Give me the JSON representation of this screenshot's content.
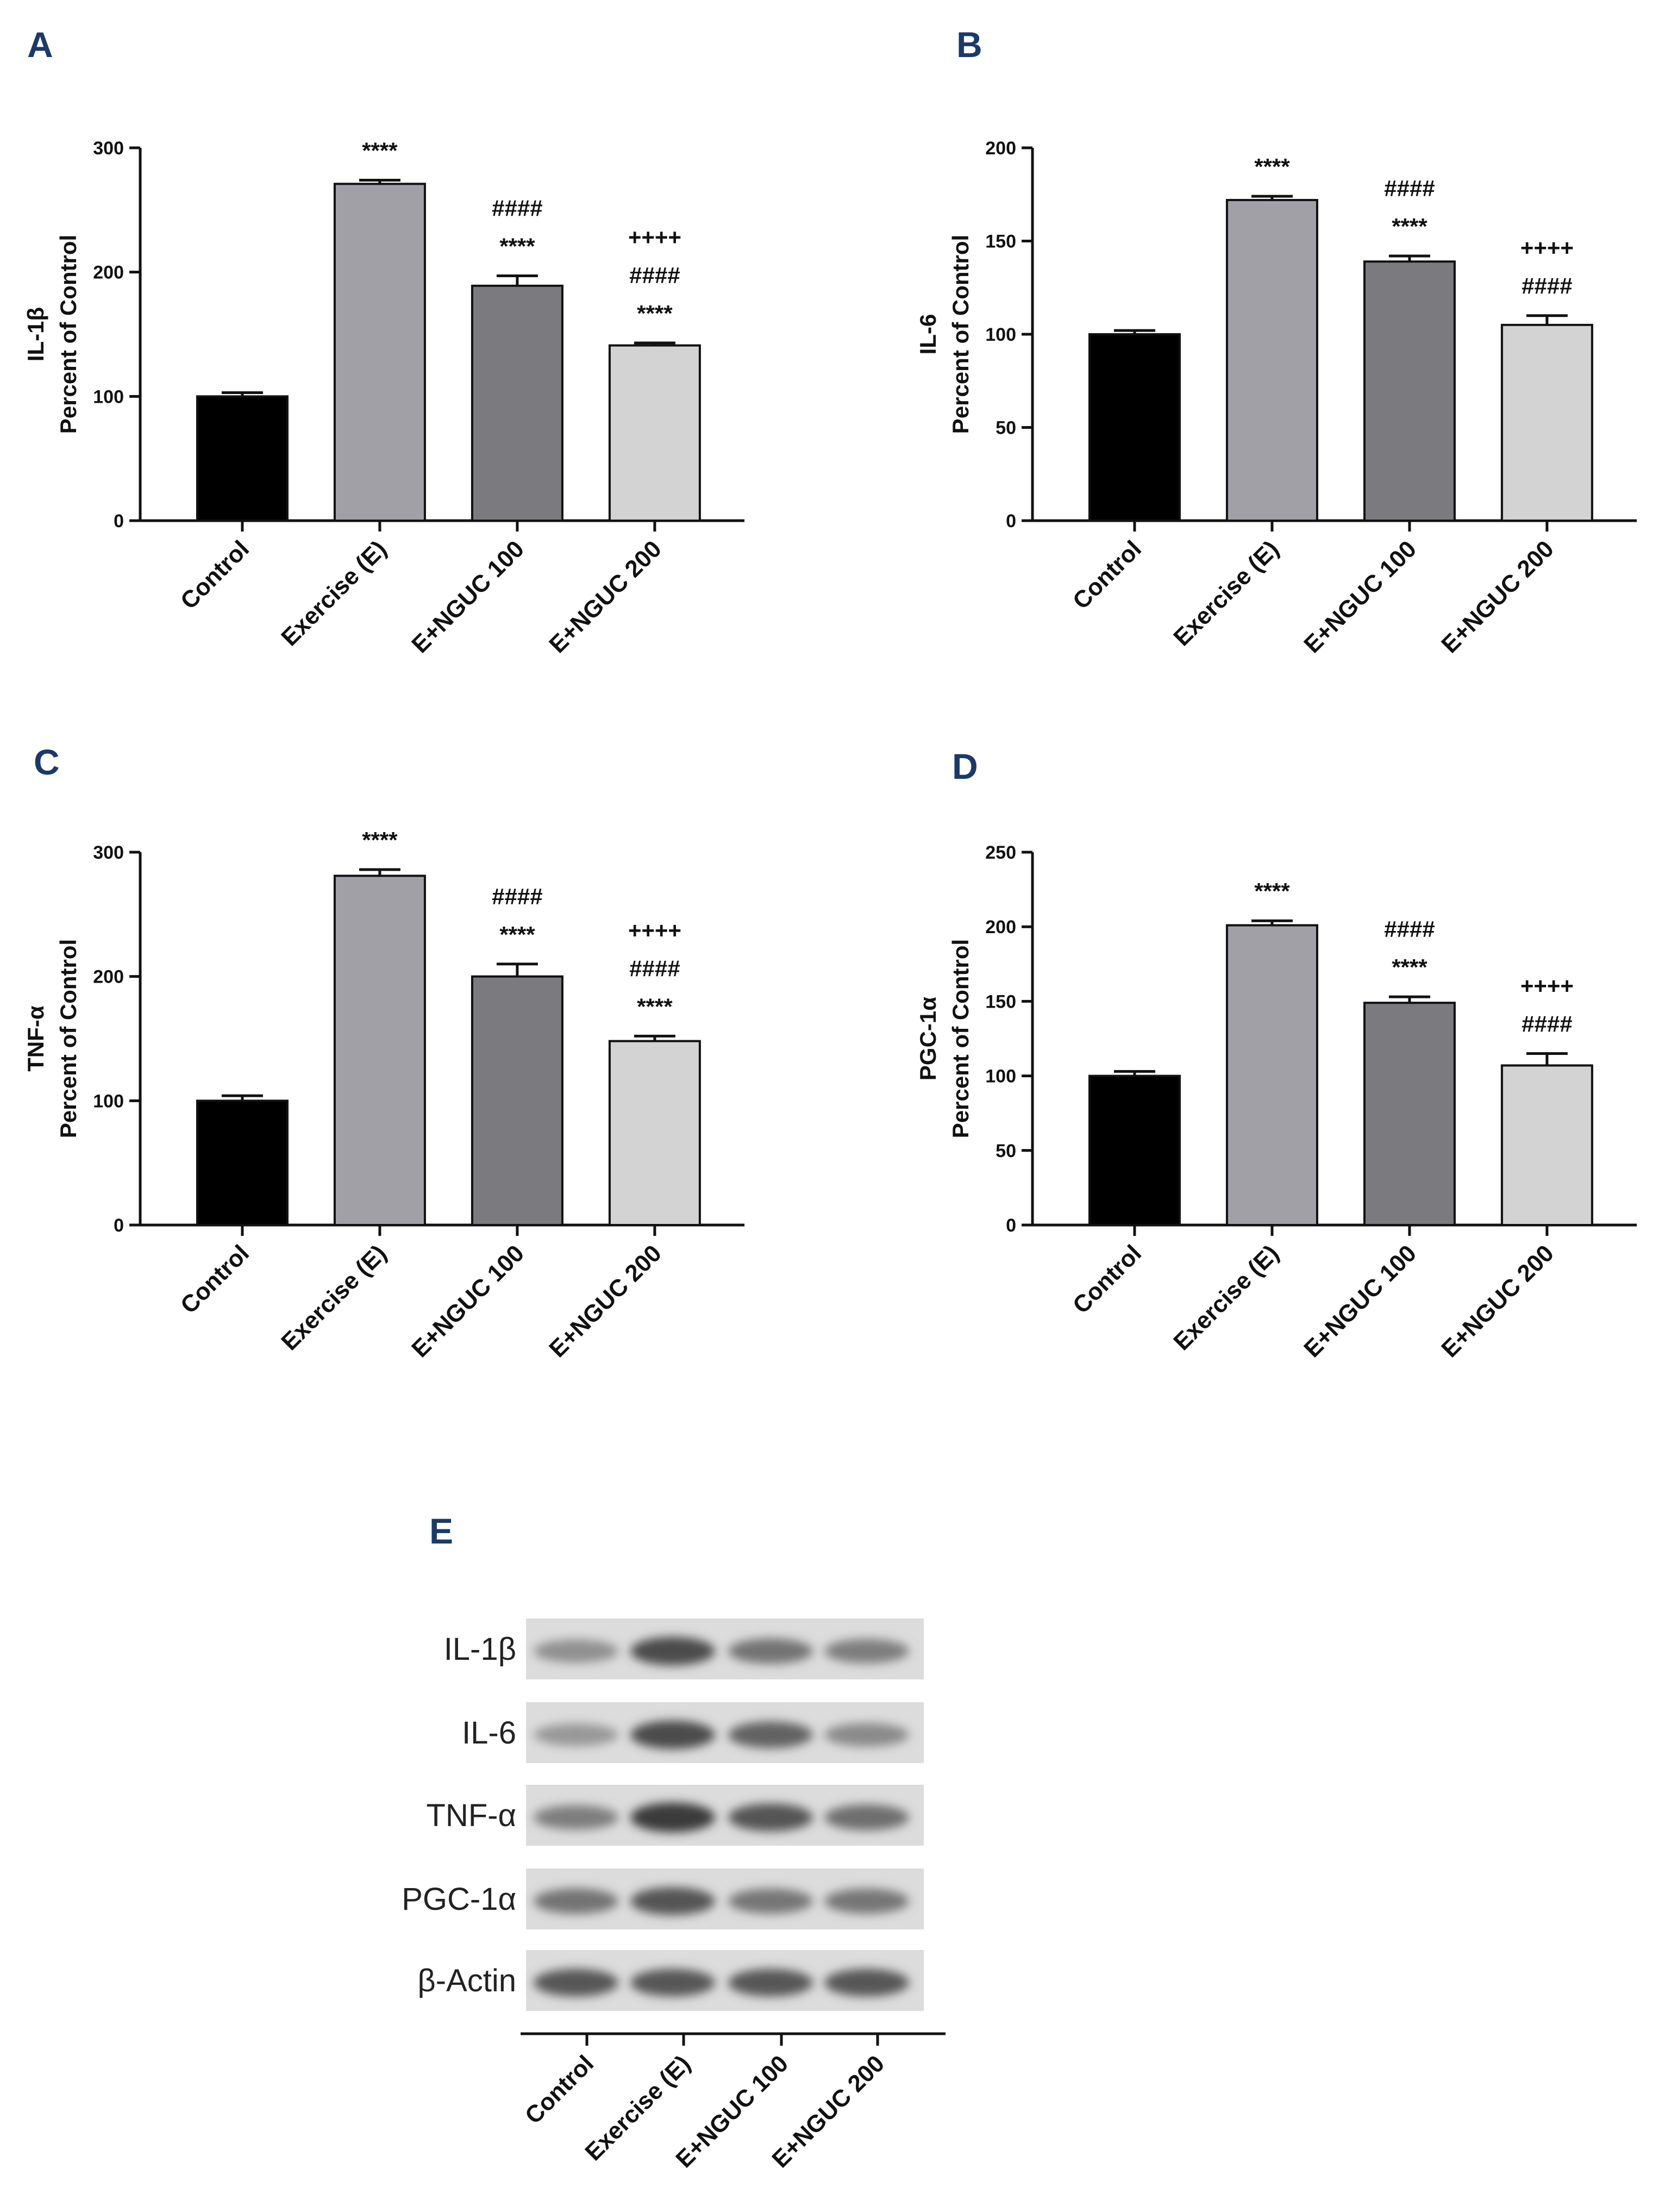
{
  "chart_data": [
    {
      "panel": "A",
      "type": "bar",
      "ylabel_line1": "IL-1β",
      "ylabel_line2": "Percent of Control",
      "categories": [
        "Control",
        "Exercise (E)",
        "E+NGUC 100",
        "E+NGUC 200"
      ],
      "values": [
        100,
        271,
        189,
        141
      ],
      "errors": [
        3,
        3,
        8,
        2
      ],
      "ylim": [
        0,
        300
      ],
      "yticks": [
        0,
        100,
        200,
        300
      ],
      "bar_colors": [
        "#000000",
        "#a0a0a6",
        "#7b7b7f",
        "#d3d3d3"
      ],
      "annotations": [
        [],
        [
          "****"
        ],
        [
          "####",
          "****"
        ],
        [
          "++++",
          "####",
          "****"
        ]
      ]
    },
    {
      "panel": "B",
      "type": "bar",
      "ylabel_line1": "IL-6",
      "ylabel_line2": "Percent of Control",
      "categories": [
        "Control",
        "Exercise (E)",
        "E+NGUC 100",
        "E+NGUC 200"
      ],
      "values": [
        100,
        172,
        139,
        105
      ],
      "errors": [
        2,
        2,
        3,
        5
      ],
      "ylim": [
        0,
        200
      ],
      "yticks": [
        0,
        50,
        100,
        150,
        200
      ],
      "bar_colors": [
        "#000000",
        "#a0a0a6",
        "#7b7b7f",
        "#d3d3d3"
      ],
      "annotations": [
        [],
        [
          "****"
        ],
        [
          "####",
          "****"
        ],
        [
          "++++",
          "####"
        ]
      ]
    },
    {
      "panel": "C",
      "type": "bar",
      "ylabel_line1": "TNF-α",
      "ylabel_line2": "Percent of Control",
      "categories": [
        "Control",
        "Exercise (E)",
        "E+NGUC 100",
        "E+NGUC 200"
      ],
      "values": [
        100,
        281,
        200,
        148
      ],
      "errors": [
        4,
        5,
        10,
        4
      ],
      "ylim": [
        0,
        300
      ],
      "yticks": [
        0,
        100,
        200,
        300
      ],
      "bar_colors": [
        "#000000",
        "#a0a0a6",
        "#7b7b7f",
        "#d3d3d3"
      ],
      "annotations": [
        [],
        [
          "****"
        ],
        [
          "####",
          "****"
        ],
        [
          "++++",
          "####",
          "****"
        ]
      ]
    },
    {
      "panel": "D",
      "type": "bar",
      "ylabel_line1": "PGC-1α",
      "ylabel_line2": "Percent of Control",
      "categories": [
        "Control",
        "Exercise (E)",
        "E+NGUC 100",
        "E+NGUC 200"
      ],
      "values": [
        100,
        201,
        149,
        107
      ],
      "errors": [
        3,
        3,
        4,
        8
      ],
      "ylim": [
        0,
        250
      ],
      "yticks": [
        0,
        50,
        100,
        150,
        200,
        250
      ],
      "bar_colors": [
        "#000000",
        "#a0a0a6",
        "#7b7b7f",
        "#d3d3d3"
      ],
      "annotations": [
        [],
        [
          "****"
        ],
        [
          "####",
          "****"
        ],
        [
          "++++",
          "####"
        ]
      ]
    }
  ],
  "blot": {
    "panel": "E",
    "rows": [
      "IL-1β",
      "IL-6",
      "TNF-α",
      "PGC-1α",
      "β-Actin"
    ],
    "lanes": [
      "Control",
      "Exercise (E)",
      "E+NGUC 100",
      "E+NGUC 200"
    ],
    "band_intensity": [
      [
        0.45,
        0.85,
        0.62,
        0.55
      ],
      [
        0.4,
        0.85,
        0.72,
        0.48
      ],
      [
        0.55,
        0.95,
        0.8,
        0.65
      ],
      [
        0.62,
        0.8,
        0.6,
        0.6
      ],
      [
        0.78,
        0.78,
        0.78,
        0.78
      ]
    ]
  }
}
